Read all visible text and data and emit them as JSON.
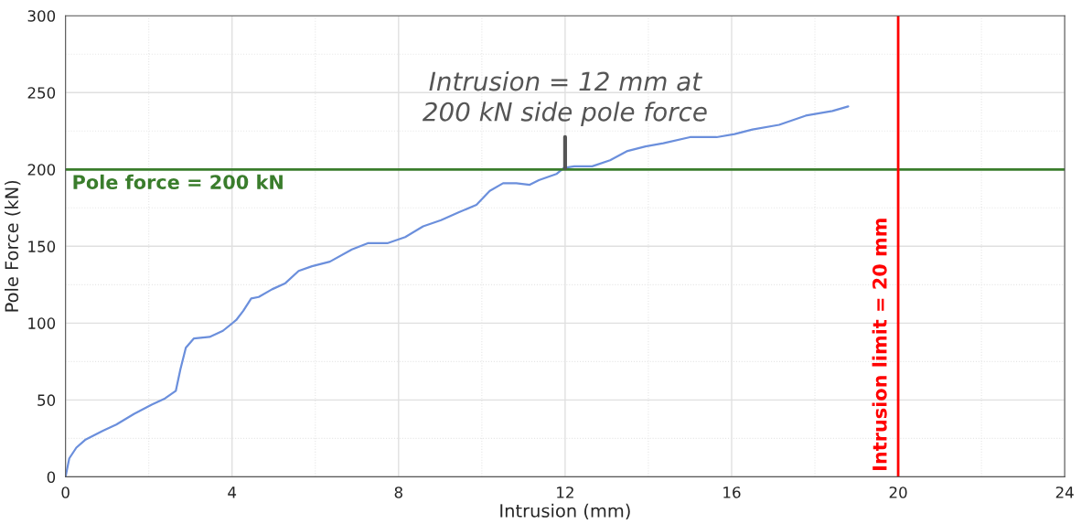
{
  "chart_data": {
    "type": "line",
    "xlabel": "Intrusion (mm)",
    "ylabel": "Pole Force (kN)",
    "xlim": [
      0,
      24
    ],
    "xticks": [
      0,
      4,
      8,
      12,
      16,
      20,
      24
    ],
    "ylim": [
      0,
      300
    ],
    "yticks": [
      0,
      50,
      100,
      150,
      200,
      250,
      300
    ],
    "grid": true,
    "marker": "none",
    "line_style": "solid",
    "series": [
      {
        "color": "#6b8fdc",
        "x": [
          0,
          0.09,
          0.26,
          0.47,
          0.9,
          1.22,
          1.65,
          2.07,
          2.39,
          2.65,
          2.76,
          2.89,
          3.08,
          3.46,
          3.78,
          4.1,
          4.27,
          4.46,
          4.64,
          4.96,
          5.28,
          5.6,
          5.92,
          6.35,
          6.88,
          7.26,
          7.73,
          8.16,
          8.59,
          9.02,
          9.44,
          9.87,
          10.19,
          10.51,
          10.83,
          11.15,
          11.37,
          11.79,
          11.97,
          12.22,
          12.65,
          13.08,
          13.5,
          13.93,
          14.36,
          15.0,
          15.64,
          16.07,
          16.5,
          17.14,
          17.78,
          18.42,
          18.8
        ],
        "values": [
          0,
          12,
          19,
          24,
          30,
          34,
          41,
          47,
          51,
          56,
          70,
          84,
          90,
          91,
          95,
          102,
          108,
          116,
          117,
          122,
          126,
          134,
          137,
          140,
          148,
          152,
          152,
          156,
          163,
          167,
          172,
          177,
          186,
          191,
          191,
          190,
          193,
          197,
          201,
          202,
          202,
          206,
          212,
          215,
          217,
          221,
          221,
          223,
          226,
          229,
          235,
          238,
          241
        ]
      }
    ],
    "ref_lines": [
      {
        "axis": "y",
        "value": 200,
        "label": "Pole force = 200 kN",
        "color": "#3a7d2c"
      },
      {
        "axis": "x",
        "value": 20,
        "label": "Intrusion limit = 20 mm",
        "color": "#ff0000"
      }
    ],
    "annotations": [
      {
        "text": "Intrusion = 12 mm at\n200 kN side pole force",
        "x": 12,
        "y": 200
      }
    ]
  }
}
